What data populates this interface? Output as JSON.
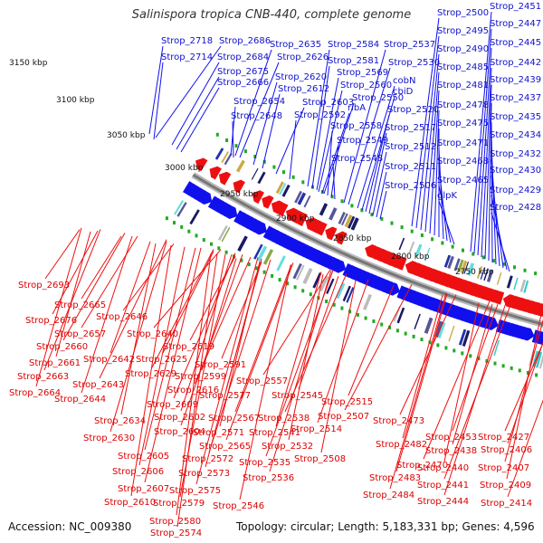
{
  "title": "Salinispora tropica CNB-440, complete genome",
  "accession": "Accession: NC_009380",
  "stats": "Topology: circular; Length: 5,183,331 bp; Genes: 4,596",
  "colors": {
    "forward": "#1010ee",
    "reverse": "#ee1010",
    "backbone": "#777777",
    "marker": "#22aa22",
    "label_forward": "#1010cc",
    "label_reverse": "#dd0000"
  },
  "kbp_labels": [
    "3150 kbp",
    "3100 kbp",
    "3050 kbp",
    "3000 kbp",
    "2950 kbp",
    "2900 kbp",
    "2850 kbp",
    "2800 kbp",
    "2750 kbp"
  ],
  "forward_labels": [
    "Strop_2718",
    "Strop_2686",
    "Strop_2714",
    "Strop_2684",
    "Strop_2675",
    "Strop_2666",
    "Strop_2635",
    "Strop_2626",
    "Strop_2620",
    "Strop_2612",
    "Strop_2654",
    "Strop_2603",
    "Strop_2648",
    "Strop_2592",
    "Strop_2584",
    "Strop_2581",
    "Strop_2569",
    "Strop_2560",
    "Strop_2550",
    "Strop_2558",
    "Strop_2549",
    "Strop_2548",
    "ribA",
    "Strop_2537",
    "Strop_2530",
    "cobN",
    "cbiD",
    "Strop_2520",
    "Strop_2517",
    "Strop_2512",
    "Strop_2511",
    "Strop_2506",
    "Strop_2500",
    "Strop_2495",
    "Strop_2490",
    "Strop_2485",
    "Strop_2481",
    "Strop_2478",
    "Strop_2475",
    "Strop_2471",
    "Strop_2468",
    "Strop_2465",
    "glpK",
    "Strop_2451",
    "Strop_2447",
    "Strop_2445",
    "Strop_2442",
    "Strop_2439",
    "Strop_2437",
    "Strop_2435",
    "Strop_2434",
    "Strop_2432",
    "Strop_2430",
    "Strop_2429",
    "Strop_2428"
  ],
  "reverse_labels": [
    "Strop_2693",
    "Strop_2665",
    "Strop_2676",
    "Strop_2646",
    "Strop_2657",
    "Strop_2660",
    "Strop_2640",
    "Strop_2661",
    "Strop_2642",
    "Strop_2619",
    "Strop_2625",
    "Strop_2663",
    "Strop_2629",
    "Strop_2643",
    "Strop_2599",
    "Strop_2591",
    "Strop_2664",
    "Strop_2644",
    "Strop_2616",
    "Strop_2609",
    "Strop_2557",
    "Strop_2577",
    "Strop_2545",
    "Strop_2515",
    "Strop_2602",
    "Strop_2567",
    "Strop_2538",
    "Strop_2507",
    "Strop_2634",
    "Strop_2571",
    "Strop_2541",
    "Strop_2514",
    "Strop_2473",
    "Strop_2604",
    "Strop_2565",
    "Strop_2532",
    "Strop_2482",
    "Strop_2453",
    "Strop_2427",
    "Strop_2630",
    "Strop_2572",
    "Strop_2535",
    "Strop_2508",
    "Strop_2438",
    "Strop_2406",
    "Strop_2605",
    "Strop_2573",
    "Strop_2536",
    "Strop_2470",
    "Strop_2440",
    "Strop_2407",
    "Strop_2606",
    "Strop_2483",
    "Strop_2607",
    "Strop_2575",
    "Strop_2441",
    "Strop_2409",
    "Strop_2610",
    "Strop_2579",
    "Strop_2546",
    "Strop_2484",
    "Strop_2444",
    "Strop_2414",
    "Strop_2580",
    "Strop_2574"
  ]
}
